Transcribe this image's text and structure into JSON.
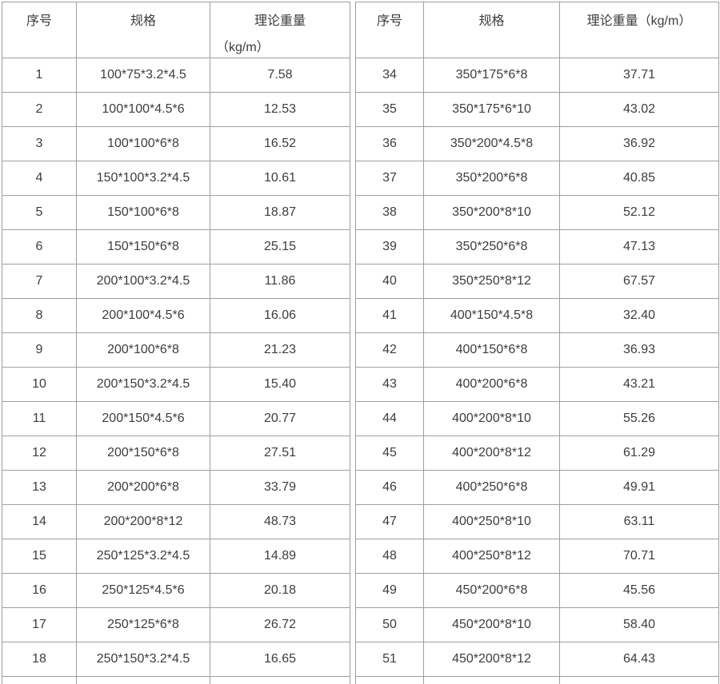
{
  "colors": {
    "background": "#ffffff",
    "border": "#9f9f9f",
    "text": "#3d3d3d"
  },
  "chart_data": [
    {
      "type": "table",
      "position": "left",
      "columns": [
        "序号",
        "规格",
        "理论重量（kg/m）"
      ],
      "headers": {
        "no": "序号",
        "spec": "规格",
        "weight_line1": "理论重量",
        "weight_line2": "（kg/m）"
      },
      "rows": [
        [
          "1",
          "100*75*3.2*4.5",
          "7.58"
        ],
        [
          "2",
          "100*100*4.5*6",
          "12.53"
        ],
        [
          "3",
          "100*100*6*8",
          "16.52"
        ],
        [
          "4",
          "150*100*3.2*4.5",
          "10.61"
        ],
        [
          "5",
          "150*100*6*8",
          "18.87"
        ],
        [
          "6",
          "150*150*6*8",
          "25.15"
        ],
        [
          "7",
          "200*100*3.2*4.5",
          "11.86"
        ],
        [
          "8",
          "200*100*4.5*6",
          "16.06"
        ],
        [
          "9",
          "200*100*6*8",
          "21.23"
        ],
        [
          "10",
          "200*150*3.2*4.5",
          "15.40"
        ],
        [
          "11",
          "200*150*4.5*6",
          "20.77"
        ],
        [
          "12",
          "200*150*6*8",
          "27.51"
        ],
        [
          "13",
          "200*200*6*8",
          "33.79"
        ],
        [
          "14",
          "200*200*8*12",
          "48.73"
        ],
        [
          "15",
          "250*125*3.2*4.5",
          "14.89"
        ],
        [
          "16",
          "250*125*4.5*6",
          "20.18"
        ],
        [
          "17",
          "250*125*6*8",
          "26.72"
        ],
        [
          "18",
          "250*150*3.2*4.5",
          "16.65"
        ]
      ],
      "partial_next_row": true
    },
    {
      "type": "table",
      "position": "right",
      "columns": [
        "序号",
        "规格",
        "理论重量（kg/m）"
      ],
      "headers": {
        "no": "序号",
        "spec": "规格",
        "weight": "理论重量（kg/m）"
      },
      "rows": [
        [
          "34",
          "350*175*6*8",
          "37.71"
        ],
        [
          "35",
          "350*175*6*10",
          "43.02"
        ],
        [
          "36",
          "350*200*4.5*8",
          "36.92"
        ],
        [
          "37",
          "350*200*6*8",
          "40.85"
        ],
        [
          "38",
          "350*200*8*10",
          "52.12"
        ],
        [
          "39",
          "350*250*6*8",
          "47.13"
        ],
        [
          "40",
          "350*250*8*12",
          "67.57"
        ],
        [
          "41",
          "400*150*4.5*8",
          "32.40"
        ],
        [
          "42",
          "400*150*6*8",
          "36.93"
        ],
        [
          "43",
          "400*200*6*8",
          "43.21"
        ],
        [
          "44",
          "400*200*8*10",
          "55.26"
        ],
        [
          "45",
          "400*200*8*12",
          "61.29"
        ],
        [
          "46",
          "400*250*6*8",
          "49.91"
        ],
        [
          "47",
          "400*250*8*10",
          "63.11"
        ],
        [
          "48",
          "400*250*8*12",
          "70.71"
        ],
        [
          "49",
          "450*200*6*8",
          "45.56"
        ],
        [
          "50",
          "450*200*8*10",
          "58.40"
        ],
        [
          "51",
          "450*200*8*12",
          "64.43"
        ]
      ],
      "partial_next_row": true
    }
  ]
}
